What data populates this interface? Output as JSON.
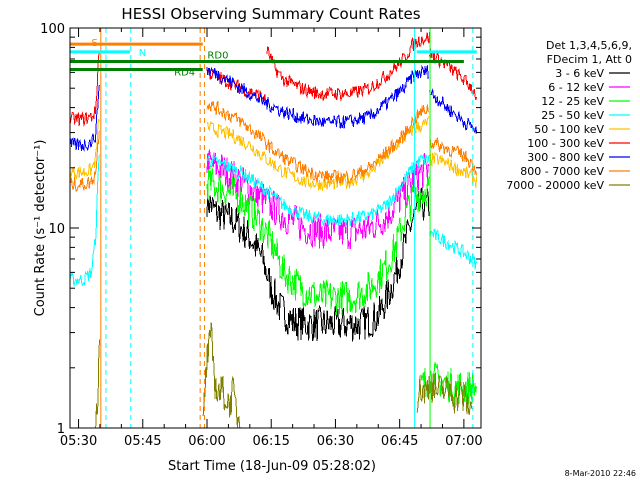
{
  "chart_data": {
    "type": "line",
    "title": "HESSI Observing Summary Count Rates",
    "xlabel": "Start Time (18-Jun-09 05:28:02)",
    "ylabel": "Count Rate (s⁻¹ detector⁻¹)",
    "yscale": "log",
    "ylim": [
      1,
      100
    ],
    "xlim": [
      0,
      96
    ],
    "x_tick_labels": [
      "05:30",
      "05:45",
      "06:00",
      "06:15",
      "06:30",
      "06:45",
      "07:00"
    ],
    "x_tick_minutes": [
      2,
      17,
      32,
      47,
      62,
      77,
      92
    ],
    "y_tick_labels": [
      "1",
      "10",
      "100"
    ],
    "y_tick_values": [
      1,
      10,
      100
    ],
    "legend_header": [
      "Det 1,3,4,5,6,9,",
      "FDecim 1, Att 0"
    ],
    "legend_placement": "top-right",
    "footer": "8-Mar-2010 22:46",
    "annotations": [
      {
        "label": "S",
        "color": "#ff7f00",
        "x": [
          0,
          31
        ],
        "y": 83
      },
      {
        "label": "N",
        "color": "#00ffff",
        "x": [
          0,
          14
        ],
        "y": 76
      },
      {
        "label": "RD0",
        "color": "#007f00",
        "x": [
          0,
          92
        ],
        "y": 68
      },
      {
        "label": "RD4",
        "color": "#007f00",
        "x": [
          0,
          31
        ],
        "y": 62
      },
      {
        "label": "",
        "color": "#00ffff",
        "x": [
          81,
          95
        ],
        "y": 76
      }
    ],
    "vlines": [
      {
        "x": 7.2,
        "color": "#ff7f00",
        "style": "solid"
      },
      {
        "x": 8.4,
        "color": "#00ffff",
        "style": "dashed"
      },
      {
        "x": 14.2,
        "color": "#00ffff",
        "style": "dashed"
      },
      {
        "x": 30.4,
        "color": "#ff7f00",
        "style": "dashed"
      },
      {
        "x": 31.4,
        "color": "#ff7f00",
        "style": "dashed"
      },
      {
        "x": 80.5,
        "color": "#00ffff",
        "style": "solid"
      },
      {
        "x": 84.1,
        "color": "#00ff00",
        "style": "solid"
      },
      {
        "x": 94.1,
        "color": "#00ffff",
        "style": "dashed"
      }
    ],
    "series": [
      {
        "name": "3 - 6 keV",
        "color": "#000000",
        "segments": [
          {
            "x": [
              32,
              34,
              38,
              42,
              45,
              47,
              49,
              52,
              56,
              60,
              64,
              68,
              72,
              75,
              78,
              80,
              82,
              84
            ],
            "y": [
              14,
              12,
              11,
              9,
              7,
              5,
              4,
              3.4,
              3.3,
              3.3,
              3.3,
              3.3,
              3.6,
              5,
              8,
              11,
              13,
              13
            ]
          }
        ]
      },
      {
        "name": "6 - 12 keV",
        "color": "#ff00ff",
        "segments": [
          {
            "x": [
              32,
              35,
              40,
              45,
              50,
              55,
              60,
              65,
              70,
              74,
              77,
              80,
              82,
              84
            ],
            "y": [
              21,
              20,
              17,
              14,
              11.5,
              10,
              9.5,
              9.5,
              10,
              11.5,
              14,
              17,
              19,
              20
            ]
          }
        ]
      },
      {
        "name": "12 - 25 keV",
        "color": "#00ff00",
        "segments": [
          {
            "x": [
              32,
              35,
              40,
              44,
              47,
              50,
              54,
              58,
              62,
              66,
              70,
              73,
              76,
              78,
              80,
              82,
              84
            ],
            "y": [
              17,
              16,
              14,
              11,
              8.5,
              6,
              5,
              4.5,
              4.5,
              4.5,
              5,
              6,
              8,
              11,
              14,
              15,
              16
            ]
          },
          {
            "x": [
              82,
              84,
              87,
              90,
              93,
              95
            ],
            "y": [
              1.6,
              1.8,
              1.7,
              1.6,
              1.6,
              1.6
            ]
          }
        ]
      },
      {
        "name": "25 - 50 keV",
        "color": "#00ffff",
        "segments": [
          {
            "x": [
              0,
              3,
              5,
              6,
              7
            ],
            "y": [
              5.5,
              5.5,
              6,
              9,
              30
            ]
          },
          {
            "x": [
              32,
              35,
              40,
              45,
              50,
              55,
              60,
              65,
              70,
              74,
              77,
              80,
              82,
              84
            ],
            "y": [
              22,
              21,
              19,
              16,
              13,
              11.5,
              11,
              11,
              11.5,
              13,
              16,
              20,
              22,
              22
            ]
          },
          {
            "x": [
              84,
              86,
              88,
              90,
              92,
              94,
              95
            ],
            "y": [
              9.5,
              9,
              8.5,
              8,
              7.5,
              7,
              6.5
            ]
          }
        ]
      },
      {
        "name": "50 - 100 keV",
        "color": "#ffc000",
        "segments": [
          {
            "x": [
              0,
              3,
              5,
              6,
              7
            ],
            "y": [
              19,
              19,
              19.5,
              22,
              40
            ]
          },
          {
            "x": [
              32,
              34,
              38,
              42,
              46,
              50,
              55,
              60,
              65,
              70,
              74,
              77,
              80,
              83,
              84
            ],
            "y": [
              32,
              31,
              29,
              26,
              22,
              19,
              17,
              16.5,
              17,
              19,
              23,
              27,
              31,
              33,
              34
            ]
          },
          {
            "x": [
              84,
              86,
              88,
              90,
              92,
              94,
              95
            ],
            "y": [
              22,
              22,
              21,
              20,
              19,
              18,
              17
            ]
          }
        ]
      },
      {
        "name": "100 - 300 keV",
        "color": "#ff0000",
        "segments": [
          {
            "x": [
              0,
              3,
              5,
              6,
              7
            ],
            "y": [
              35,
              35,
              36,
              38,
              95
            ]
          },
          {
            "x": [
              32,
              36,
              40,
              45,
              46
            ],
            "y": [
              60,
              55,
              50,
              45,
              42
            ]
          },
          {
            "x": [
              46,
              48,
              50,
              54,
              58,
              62,
              66,
              70,
              74,
              78,
              80,
              82,
              84
            ],
            "y": [
              78,
              62,
              55,
              50,
              47,
              47,
              47,
              50,
              58,
              70,
              82,
              88,
              90
            ]
          },
          {
            "x": [
              84,
              86,
              88,
              90,
              92,
              94,
              95
            ],
            "y": [
              75,
              70,
              65,
              60,
              55,
              50,
              45
            ]
          }
        ]
      },
      {
        "name": "300 - 800 keV",
        "color": "#0000ff",
        "segments": [
          {
            "x": [
              0,
              3,
              5,
              6,
              7
            ],
            "y": [
              26,
              26,
              27,
              29,
              60
            ]
          },
          {
            "x": [
              32,
              35,
              40,
              45,
              50,
              55,
              60,
              65,
              70,
              74,
              78,
              80,
              82,
              84
            ],
            "y": [
              62,
              58,
              50,
              43,
              38,
              35,
              33.5,
              34,
              36,
              42,
              50,
              57,
              60,
              61
            ]
          },
          {
            "x": [
              84,
              86,
              88,
              90,
              92,
              94,
              95
            ],
            "y": [
              48,
              44,
              40,
              37,
              34,
              32,
              30
            ]
          }
        ]
      },
      {
        "name": "800 - 7000 keV",
        "color": "#ff7f00",
        "segments": [
          {
            "x": [
              0,
              3,
              5,
              6,
              7
            ],
            "y": [
              16.5,
              16.5,
              17,
              19,
              35
            ]
          },
          {
            "x": [
              32,
              35,
              40,
              44,
              48,
              52,
              56,
              60,
              65,
              70,
              74,
              78,
              80,
              82,
              84
            ],
            "y": [
              42,
              39,
              34,
              29,
              24,
              21,
              19,
              18,
              18,
              20,
              24,
              29,
              34,
              38,
              40
            ]
          },
          {
            "x": [
              84,
              86,
              88,
              90,
              92,
              94,
              95
            ],
            "y": [
              27,
              26,
              25,
              24,
              23,
              21,
              19
            ]
          }
        ]
      },
      {
        "name": "7000 - 20000 keV",
        "color": "#808000",
        "segments": [
          {
            "x": [
              6,
              6.5,
              7
            ],
            "y": [
              1,
              1.5,
              2.8
            ]
          },
          {
            "x": [
              31,
              32,
              33,
              34,
              35,
              36,
              37,
              38,
              39,
              40
            ],
            "y": [
              1,
              2.2,
              2.8,
              1.6,
              1.5,
              1.5,
              1.3,
              1.5,
              1.2,
              1
            ]
          },
          {
            "x": [
              81,
              82,
              83,
              84,
              85,
              86,
              87,
              88,
              89,
              90,
              91,
              92,
              93,
              94
            ],
            "y": [
              1.4,
              1.6,
              1.5,
              1.7,
              1.6,
              1.5,
              1.6,
              1.5,
              1.6,
              1.4,
              1.5,
              1.4,
              1.3,
              1.2
            ]
          }
        ]
      }
    ]
  }
}
